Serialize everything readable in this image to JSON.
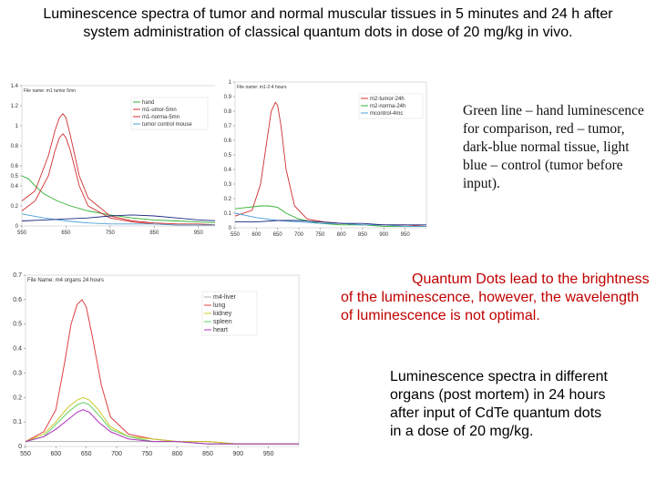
{
  "title": "Luminescence spectra of tumor and normal muscular tissues in 5 minutes and 24 h  after system administration of classical quantum dots in dose of 20 mg/kg in vivo.",
  "notes": {
    "note1": "Green line – hand luminescence for comparison, red – tumor, dark-blue normal tissue, light blue – control (tumor before input).",
    "note2": "Quantum Dots lead to the brightness of the luminescence, however, the wavelength of luminescence is not optimal.",
    "note3": "Luminescence spectra in different organs (post mortem)  in 24 hours after input of CdTe quantum dots in a dose of 20 mg/kg."
  },
  "chart_data": [
    {
      "type": "line",
      "file_label": "File name: m1 tumor 5mn",
      "xlim": [
        550,
        1000
      ],
      "ylim": [
        0,
        1.4
      ],
      "xticks": [
        550,
        650,
        750,
        850,
        950
      ],
      "yticks": [
        0,
        0.2,
        0.4,
        0.5,
        0.6,
        0.8,
        1,
        1.2,
        1.4
      ],
      "legend_position": "top-right",
      "series": [
        {
          "name": "hand",
          "color": "#30b030",
          "x": [
            550,
            565,
            580,
            600,
            630,
            660,
            700,
            750,
            800,
            850,
            900,
            950,
            1000
          ],
          "y": [
            0.5,
            0.47,
            0.4,
            0.32,
            0.25,
            0.2,
            0.15,
            0.11,
            0.08,
            0.06,
            0.05,
            0.04,
            0.03
          ]
        },
        {
          "name": "m1-umor-5mn",
          "color": "#d03030",
          "x": [
            550,
            580,
            610,
            625,
            635,
            643,
            650,
            660,
            680,
            700,
            750,
            800,
            850,
            900,
            950,
            1000
          ],
          "y": [
            0.25,
            0.35,
            0.7,
            0.95,
            1.08,
            1.12,
            1.08,
            0.9,
            0.5,
            0.28,
            0.1,
            0.05,
            0.03,
            0.02,
            0.02,
            0.01
          ]
        },
        {
          "name": "m1-norma-5mn",
          "color": "#d03030",
          "x": [
            550,
            580,
            610,
            625,
            635,
            643,
            650,
            660,
            680,
            700,
            750,
            800,
            850,
            900,
            950,
            1000
          ],
          "y": [
            0.15,
            0.25,
            0.5,
            0.75,
            0.88,
            0.92,
            0.88,
            0.75,
            0.4,
            0.2,
            0.08,
            0.04,
            0.02,
            0.01,
            0.01,
            0.01
          ]
        },
        {
          "name": "tumor control mouse",
          "color": "#4aa0d8",
          "x": [
            550,
            600,
            650,
            700,
            750,
            800,
            850,
            900,
            950,
            1000
          ],
          "y": [
            0.12,
            0.08,
            0.05,
            0.03,
            0.02,
            0.02,
            0.02,
            0.01,
            0.01,
            0.01
          ]
        },
        {
          "name": "",
          "color": "#1a2a80",
          "x": [
            550,
            600,
            650,
            700,
            750,
            800,
            850,
            900,
            950,
            1000
          ],
          "y": [
            0.05,
            0.06,
            0.07,
            0.08,
            0.1,
            0.11,
            0.1,
            0.08,
            0.06,
            0.05
          ]
        }
      ]
    },
    {
      "type": "line",
      "file_label": "File name: m1-2-4 hours",
      "xlim": [
        550,
        1000
      ],
      "ylim": [
        0,
        1
      ],
      "xticks": [
        550,
        600,
        650,
        700,
        750,
        800,
        850,
        900,
        950
      ],
      "yticks": [
        0,
        0.1,
        0.2,
        0.3,
        0.4,
        0.5,
        0.6,
        0.7,
        0.8,
        0.9,
        1
      ],
      "legend_position": "top-right",
      "series": [
        {
          "name": "m2-tumor-24h",
          "color": "#d03030",
          "x": [
            550,
            590,
            610,
            625,
            635,
            645,
            650,
            658,
            670,
            690,
            720,
            760,
            800,
            850,
            900,
            950,
            1000
          ],
          "y": [
            0.08,
            0.12,
            0.3,
            0.6,
            0.8,
            0.86,
            0.84,
            0.7,
            0.4,
            0.15,
            0.06,
            0.04,
            0.03,
            0.02,
            0.02,
            0.02,
            0.01
          ]
        },
        {
          "name": "m2-norma-24h",
          "color": "#30b030",
          "x": [
            550,
            580,
            610,
            630,
            650,
            670,
            700,
            750,
            800,
            850,
            900,
            950,
            1000
          ],
          "y": [
            0.13,
            0.14,
            0.15,
            0.15,
            0.14,
            0.1,
            0.06,
            0.03,
            0.02,
            0.02,
            0.01,
            0.01,
            0.01
          ]
        },
        {
          "name": "mcontrol-4mc",
          "color": "#4aa0d8",
          "x": [
            550,
            600,
            650,
            700,
            750,
            800,
            850,
            900,
            950,
            1000
          ],
          "y": [
            0.1,
            0.07,
            0.05,
            0.04,
            0.03,
            0.03,
            0.02,
            0.02,
            0.01,
            0.01
          ]
        },
        {
          "name": "",
          "color": "#1a2a80",
          "x": [
            550,
            600,
            650,
            700,
            750,
            800,
            850,
            900,
            950,
            1000
          ],
          "y": [
            0.04,
            0.04,
            0.05,
            0.05,
            0.04,
            0.03,
            0.03,
            0.02,
            0.02,
            0.02
          ]
        }
      ]
    },
    {
      "type": "line",
      "file_label": "File Name: m4 organs 24 hours",
      "xlim": [
        550,
        1000
      ],
      "ylim": [
        0,
        0.7
      ],
      "xticks": [
        550,
        600,
        650,
        700,
        750,
        800,
        850,
        900,
        950
      ],
      "yticks": [
        0,
        0.1,
        0.2,
        0.3,
        0.4,
        0.5,
        0.6,
        0.7
      ],
      "legend_position": "top-right",
      "series": [
        {
          "name": "m4-liver",
          "color": "#b0b0b0",
          "x": [
            550,
            600,
            650,
            700,
            750,
            800,
            850,
            900,
            950,
            1000
          ],
          "y": [
            0.02,
            0.02,
            0.02,
            0.02,
            0.02,
            0.02,
            0.01,
            0.01,
            0.01,
            0.01
          ]
        },
        {
          "name": "lung",
          "color": "#e04040",
          "x": [
            550,
            580,
            600,
            615,
            625,
            635,
            643,
            650,
            660,
            675,
            690,
            720,
            760,
            800,
            850,
            900,
            950,
            1000
          ],
          "y": [
            0.02,
            0.06,
            0.15,
            0.35,
            0.5,
            0.58,
            0.6,
            0.57,
            0.45,
            0.25,
            0.12,
            0.05,
            0.03,
            0.02,
            0.02,
            0.01,
            0.01,
            0.01
          ]
        },
        {
          "name": "kidney",
          "color": "#c8c828",
          "x": [
            550,
            580,
            600,
            620,
            635,
            645,
            655,
            670,
            690,
            720,
            760,
            800,
            850,
            900,
            950,
            1000
          ],
          "y": [
            0.02,
            0.05,
            0.1,
            0.16,
            0.19,
            0.2,
            0.19,
            0.15,
            0.08,
            0.04,
            0.03,
            0.02,
            0.02,
            0.01,
            0.01,
            0.01
          ]
        },
        {
          "name": "spleen",
          "color": "#60d060",
          "x": [
            550,
            580,
            600,
            620,
            635,
            645,
            655,
            670,
            690,
            720,
            760,
            800,
            850,
            900,
            950,
            1000
          ],
          "y": [
            0.02,
            0.04,
            0.09,
            0.14,
            0.17,
            0.18,
            0.17,
            0.13,
            0.07,
            0.04,
            0.02,
            0.02,
            0.01,
            0.01,
            0.01,
            0.01
          ]
        },
        {
          "name": "heart",
          "color": "#b030c0",
          "x": [
            550,
            580,
            600,
            620,
            635,
            645,
            655,
            670,
            690,
            720,
            760,
            800,
            850,
            900,
            950,
            1000
          ],
          "y": [
            0.02,
            0.04,
            0.07,
            0.11,
            0.14,
            0.15,
            0.14,
            0.1,
            0.06,
            0.03,
            0.02,
            0.02,
            0.01,
            0.01,
            0.01,
            0.01
          ]
        }
      ]
    }
  ]
}
